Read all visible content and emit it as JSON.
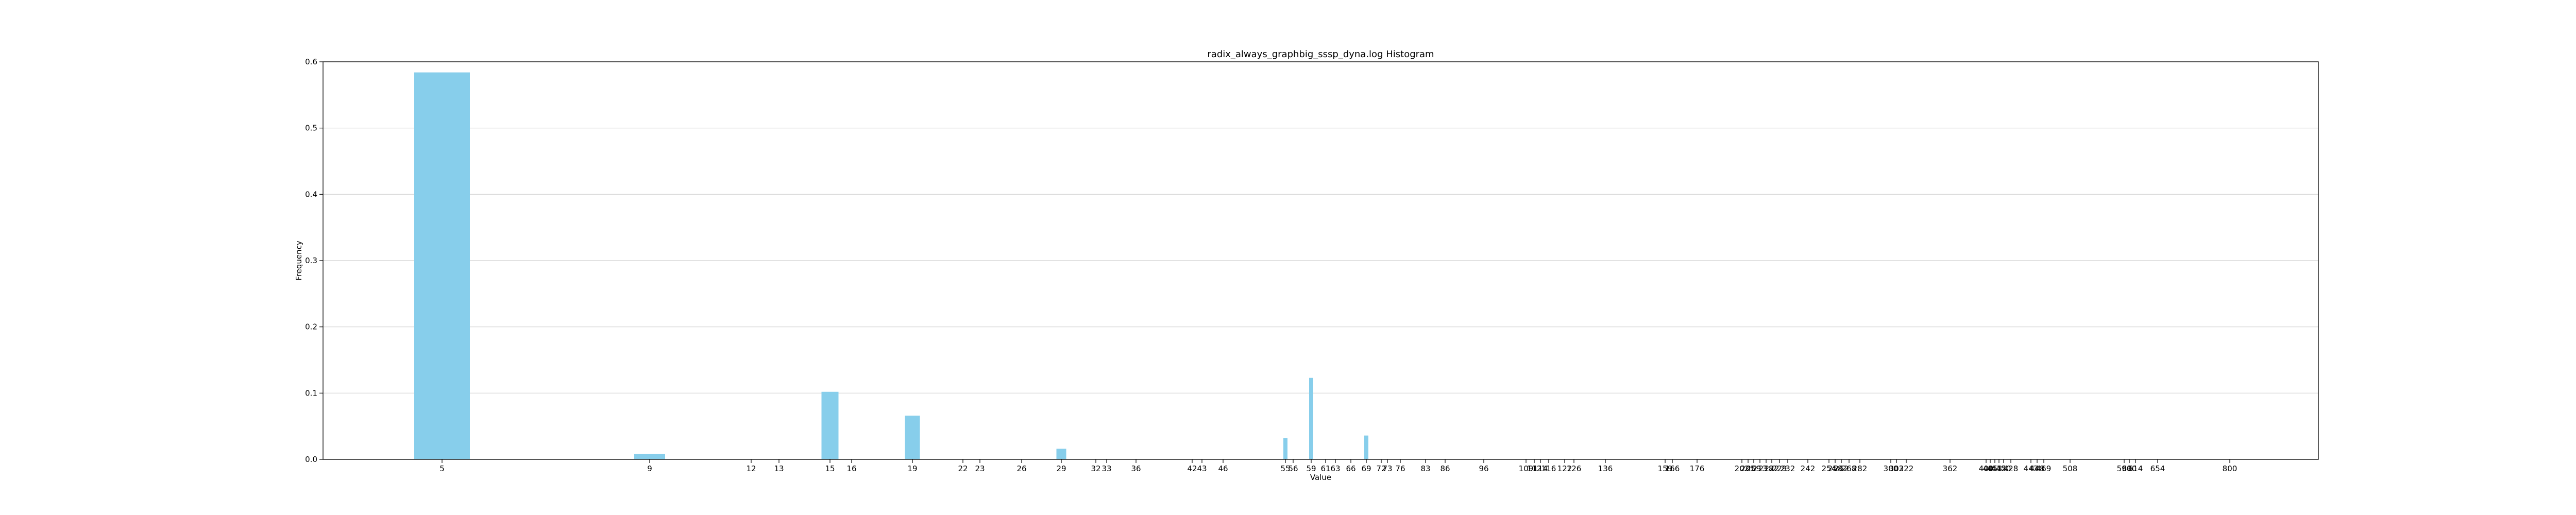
{
  "chart_data": {
    "type": "bar",
    "title": "radix_always_graphbig_sssp_dyna.log Histogram",
    "xlabel": "Value",
    "ylabel": "Frequency",
    "ylim": [
      0,
      0.6
    ],
    "yticks": [
      0.0,
      0.1,
      0.2,
      0.3,
      0.4,
      0.5,
      0.6
    ],
    "grid": "y",
    "bar_color": "#87CEEB",
    "bars": [
      {
        "category": "5",
        "value": 0.584
      },
      {
        "category": "9",
        "value": 0.008
      },
      {
        "category": "15",
        "value": 0.102
      },
      {
        "category": "19",
        "value": 0.066
      },
      {
        "category": "29",
        "value": 0.016
      },
      {
        "category": "55",
        "value": 0.032
      },
      {
        "category": "59",
        "value": 0.123
      },
      {
        "category": "69",
        "value": 0.036
      }
    ],
    "xtick_labels": [
      "5",
      "9",
      "12",
      "13",
      "15",
      "16",
      "19",
      "22",
      "23",
      "26",
      "29",
      "32",
      "33",
      "36",
      "42",
      "43",
      "46",
      "55",
      "56",
      "59",
      "61",
      "63",
      "66",
      "69",
      "72",
      "73",
      "76",
      "83",
      "86",
      "96",
      "109",
      "112",
      "114",
      "116",
      "122",
      "126",
      "136",
      "159",
      "166",
      "176",
      "202",
      "205",
      "209",
      "213",
      "218",
      "222",
      "229",
      "232",
      "242",
      "254",
      "258",
      "262",
      "268",
      "282",
      "300",
      "302",
      "322",
      "362",
      "400",
      "405",
      "413",
      "415",
      "420",
      "428",
      "443",
      "448",
      "469",
      "508",
      "590",
      "600",
      "614",
      "654",
      "800"
    ]
  }
}
